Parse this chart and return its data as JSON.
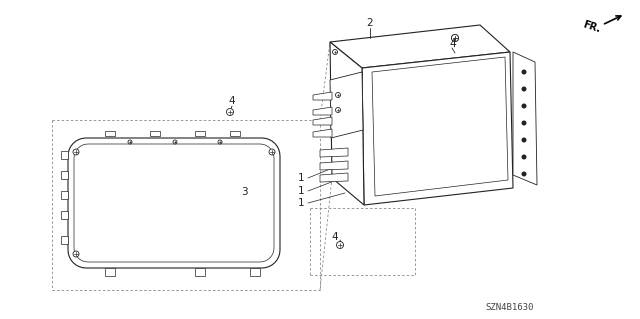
{
  "part_number": "SZN4B1630",
  "background_color": "#ffffff",
  "line_color": "#222222",
  "fig_width": 6.4,
  "fig_height": 3.19,
  "dpi": 100,
  "lw_main": 0.8,
  "lw_thin": 0.5,
  "lw_dash": 0.6
}
